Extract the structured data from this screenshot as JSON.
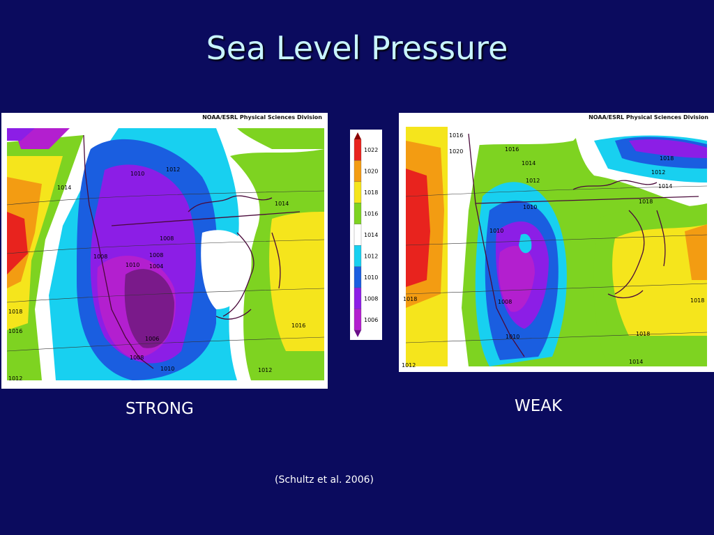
{
  "title": "Sea Level Pressure",
  "map_header": "NOAA/ESRL Physical Sciences Division",
  "left_map": {
    "caption": "STRONG",
    "labels": [
      "1014",
      "1010",
      "1012",
      "1014",
      "1008",
      "1008",
      "1008",
      "1010",
      "1004",
      "1006",
      "1008",
      "1010",
      "1012",
      "1016",
      "1016",
      "1018",
      "1012"
    ]
  },
  "right_map": {
    "caption": "WEAK",
    "labels": [
      "1016",
      "1016",
      "1014",
      "1012",
      "1010",
      "1010",
      "1008",
      "1010",
      "1018",
      "1018",
      "1012",
      "1014",
      "1018",
      "1018",
      "1018",
      "1014",
      "1012",
      "1020"
    ]
  },
  "colorbar": {
    "levels": [
      "1022",
      "1020",
      "1018",
      "1016",
      "1014",
      "1012",
      "1010",
      "1008",
      "1006"
    ],
    "colors": [
      "#e8231e",
      "#f39c12",
      "#f5e51c",
      "#7ed321",
      "#ffffff",
      "#18d0f0",
      "#1a5ee0",
      "#8c1ee6",
      "#b31fcf"
    ]
  },
  "citation": "(Schultz et al. 2006)"
}
